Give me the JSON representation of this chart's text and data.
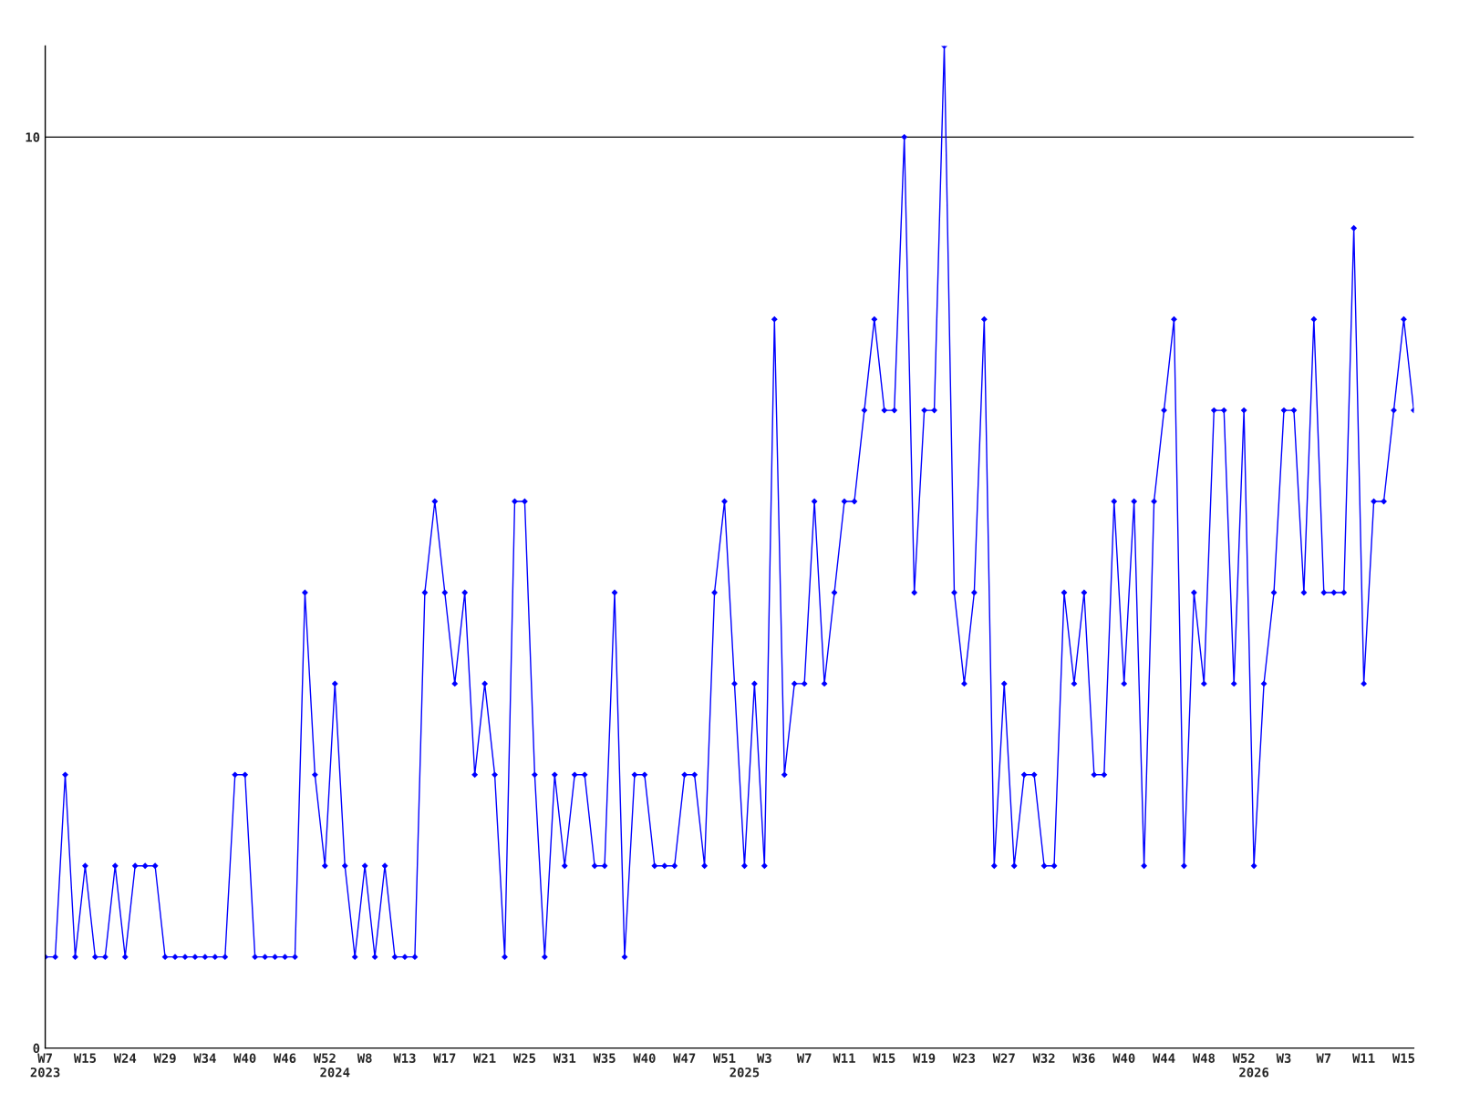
{
  "chart_data": {
    "type": "line",
    "categories": [
      "W7\n2023",
      null,
      null,
      null,
      "W15",
      null,
      null,
      null,
      "W24",
      null,
      null,
      null,
      "W29",
      null,
      null,
      null,
      "W34",
      null,
      null,
      null,
      "W40",
      null,
      null,
      null,
      "W46",
      null,
      null,
      null,
      "W52",
      "\n2024",
      null,
      null,
      "W8",
      null,
      null,
      null,
      "W13",
      null,
      null,
      null,
      "W17",
      null,
      null,
      null,
      "W21",
      null,
      null,
      null,
      "W25",
      null,
      null,
      null,
      "W31",
      null,
      null,
      null,
      "W35",
      null,
      null,
      null,
      "W40",
      null,
      null,
      null,
      "W47",
      null,
      null,
      null,
      "W51",
      null,
      "\n2025",
      null,
      "W3",
      null,
      null,
      null,
      "W7",
      null,
      null,
      null,
      "W11",
      null,
      null,
      null,
      "W15",
      null,
      null,
      null,
      "W19",
      null,
      null,
      null,
      "W23",
      null,
      null,
      null,
      "W27",
      null,
      null,
      null,
      "W32",
      null,
      null,
      null,
      "W36",
      null,
      null,
      null,
      "W40",
      null,
      null,
      null,
      "W44",
      null,
      null,
      null,
      "W48",
      null,
      null,
      null,
      "W52",
      "\n2026",
      null,
      null,
      "W3",
      null,
      null,
      null,
      "W7",
      null,
      null,
      null,
      "W11",
      null,
      null,
      null,
      "W15",
      null
    ],
    "series": [
      {
        "color": "#0000ff",
        "values": [
          1,
          1,
          3,
          1,
          2,
          1,
          1,
          2,
          1,
          2,
          2,
          2,
          1,
          1,
          1,
          1,
          1,
          1,
          1,
          3,
          3,
          1,
          1,
          1,
          1,
          1,
          5,
          3,
          2,
          4,
          2,
          1,
          2,
          1,
          2,
          1,
          1,
          1,
          5,
          6,
          5,
          4,
          5,
          3,
          4,
          3,
          1,
          6,
          6,
          3,
          1,
          3,
          2,
          3,
          3,
          2,
          2,
          5,
          1,
          3,
          3,
          2,
          2,
          2,
          3,
          3,
          2,
          5,
          6,
          4,
          2,
          4,
          2,
          8,
          3,
          4,
          4,
          6,
          4,
          5,
          6,
          6,
          7,
          8,
          7,
          7,
          10,
          5,
          7,
          7,
          11,
          5,
          4,
          5,
          8,
          2,
          4,
          2,
          3,
          3,
          2,
          2,
          5,
          4,
          5,
          3,
          3,
          6,
          4,
          6,
          2,
          6,
          7,
          8,
          2,
          5,
          4,
          7,
          7,
          4,
          7,
          2,
          4,
          5,
          7,
          7,
          5,
          8,
          5,
          5,
          5,
          9,
          4,
          6,
          6,
          7,
          8,
          7
        ]
      }
    ],
    "ylim": [
      0,
      11
    ],
    "yticks": [
      0,
      10
    ],
    "grid": "y",
    "marker": "diamond",
    "line_style": "solid",
    "legend": false
  }
}
